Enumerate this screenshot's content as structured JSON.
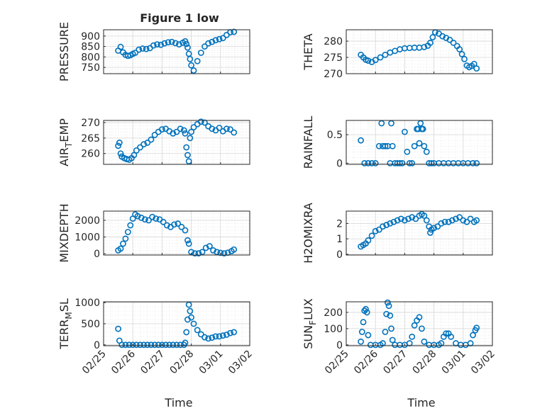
{
  "figure": {
    "title": "Figure 1 low",
    "marker_color": "#0072BD",
    "x_date_tick_labels": [
      "02/25",
      "02/26",
      "02/27",
      "02/28",
      "03/01",
      "03/02"
    ],
    "x_axis_label": "Time"
  },
  "chart_data": [
    {
      "type": "scatter",
      "marker": "open-circle",
      "grid": true,
      "title": "Figure 1 low",
      "ylabel": "PRESSURE",
      "ylim": [
        720,
        930
      ],
      "yticks": [
        750,
        800,
        850,
        900
      ],
      "x_range": [
        "02/25",
        "03/02"
      ],
      "x": [
        "02/25 12:00",
        "02/25 14:00",
        "02/25 16:00",
        "02/25 18:00",
        "02/25 20:00",
        "02/25 22:00",
        "02/26 00:00",
        "02/26 02:00",
        "02/26 05:00",
        "02/26 08:00",
        "02/26 11:00",
        "02/26 14:00",
        "02/26 17:00",
        "02/26 20:00",
        "02/26 23:00",
        "02/27 02:00",
        "02/27 05:00",
        "02/27 08:00",
        "02/27 11:00",
        "02/27 14:00",
        "02/27 17:00",
        "02/27 19:00",
        "02/27 20:00",
        "02/27 21:00",
        "02/27 22:00",
        "02/27 23:00",
        "02/28 00:00",
        "02/28 02:00",
        "02/28 05:00",
        "02/28 08:00",
        "02/28 11:00",
        "02/28 14:00",
        "02/28 17:00",
        "02/28 20:00",
        "02/28 23:00",
        "03/01 02:00",
        "03/01 05:00",
        "03/01 08:00",
        "03/01 11:00"
      ],
      "y": [
        830,
        848,
        822,
        810,
        805,
        808,
        815,
        820,
        835,
        840,
        838,
        842,
        855,
        860,
        858,
        865,
        870,
        872,
        866,
        860,
        868,
        875,
        862,
        845,
        815,
        790,
        760,
        735,
        780,
        820,
        850,
        865,
        872,
        880,
        885,
        890,
        905,
        918,
        920
      ]
    },
    {
      "type": "scatter",
      "marker": "open-circle",
      "grid": true,
      "ylabel": "THETA",
      "ylim": [
        270,
        283.5
      ],
      "yticks": [
        270,
        275,
        280
      ],
      "x_range": [
        "02/25",
        "03/02"
      ],
      "x": [
        "02/25 12:00",
        "02/25 14:00",
        "02/25 16:00",
        "02/25 18:00",
        "02/25 21:00",
        "02/26 00:00",
        "02/26 04:00",
        "02/26 08:00",
        "02/26 12:00",
        "02/26 16:00",
        "02/26 20:00",
        "02/27 00:00",
        "02/27 04:00",
        "02/27 08:00",
        "02/27 12:00",
        "02/27 16:00",
        "02/27 19:00",
        "02/27 21:00",
        "02/27 23:00",
        "02/28 01:00",
        "02/28 04:00",
        "02/28 07:00",
        "02/28 10:00",
        "02/28 13:00",
        "02/28 16:00",
        "02/28 19:00",
        "02/28 21:00",
        "02/28 23:00",
        "03/01 01:00",
        "03/01 03:00",
        "03/01 05:00",
        "03/01 07:00",
        "03/01 09:00",
        "03/01 11:00"
      ],
      "y": [
        275.8,
        275.0,
        274.3,
        274.0,
        273.6,
        274.2,
        275.0,
        275.8,
        276.5,
        277.0,
        277.5,
        277.8,
        277.9,
        278.0,
        278.0,
        278.2,
        278.6,
        279.5,
        281.2,
        282.7,
        282.3,
        281.5,
        281.0,
        280.4,
        279.5,
        278.5,
        277.5,
        276.0,
        274.5,
        272.5,
        272.0,
        272.4,
        273.0,
        271.6
      ]
    },
    {
      "type": "scatter",
      "marker": "open-circle",
      "grid": true,
      "ylabel": "AIR_TEMP",
      "ylim": [
        256.5,
        270.7
      ],
      "yticks": [
        260,
        265,
        270
      ],
      "x_range": [
        "02/25",
        "03/02"
      ],
      "x": [
        "02/25 12:00",
        "02/25 13:00",
        "02/25 14:00",
        "02/25 15:00",
        "02/25 17:00",
        "02/25 19:00",
        "02/25 21:00",
        "02/25 23:00",
        "02/26 01:00",
        "02/26 03:00",
        "02/26 06:00",
        "02/26 09:00",
        "02/26 12:00",
        "02/26 15:00",
        "02/26 18:00",
        "02/26 21:00",
        "02/27 00:00",
        "02/27 03:00",
        "02/27 06:00",
        "02/27 09:00",
        "02/27 12:00",
        "02/27 15:00",
        "02/27 18:00",
        "02/27 19:00",
        "02/27 20:00",
        "02/27 21:00",
        "02/27 22:00",
        "02/27 23:00",
        "02/28 00:00",
        "02/28 02:00",
        "02/28 05:00",
        "02/28 08:00",
        "02/28 11:00",
        "02/28 14:00",
        "02/28 17:00",
        "02/28 20:00",
        "02/28 23:00",
        "03/01 02:00",
        "03/01 05:00",
        "03/01 08:00",
        "03/01 11:00"
      ],
      "y": [
        262.5,
        263.5,
        260.0,
        259.0,
        258.5,
        258.2,
        258.0,
        258.5,
        259.5,
        261.0,
        262.0,
        263.0,
        263.5,
        264.5,
        266.0,
        267.0,
        267.8,
        268.0,
        267.2,
        266.5,
        267.0,
        268.0,
        267.5,
        266.5,
        262.0,
        259.5,
        257.5,
        265.0,
        267.0,
        268.5,
        269.5,
        270.3,
        270.0,
        268.8,
        268.0,
        267.5,
        268.3,
        267.2,
        268.0,
        267.8,
        266.8
      ]
    },
    {
      "type": "scatter",
      "marker": "open-circle",
      "grid": true,
      "ylabel": "RAINFALL",
      "ylim": [
        -0.02,
        0.75
      ],
      "yticks": [
        0,
        0.5
      ],
      "x_range": [
        "02/25",
        "03/02"
      ],
      "x": [
        "02/25 12:00",
        "02/25 15:00",
        "02/25 18:00",
        "02/25 21:00",
        "02/26 00:00",
        "02/26 03:00",
        "02/26 05:00",
        "02/26 06:00",
        "02/26 08:00",
        "02/26 10:00",
        "02/26 12:00",
        "02/26 13:00",
        "02/26 14:00",
        "02/26 16:00",
        "02/26 18:00",
        "02/26 20:00",
        "02/26 22:00",
        "02/27 00:00",
        "02/27 02:00",
        "02/27 04:00",
        "02/27 06:00",
        "02/27 08:00",
        "02/27 10:00",
        "02/27 11:00",
        "02/27 12:00",
        "02/27 13:00",
        "02/27 14:00",
        "02/27 15:00",
        "02/27 16:00",
        "02/27 18:00",
        "02/27 20:00",
        "02/27 22:00",
        "02/28 00:00",
        "02/28 04:00",
        "02/28 08:00",
        "02/28 12:00",
        "02/28 16:00",
        "02/28 20:00",
        "03/01 00:00",
        "03/01 04:00",
        "03/01 08:00",
        "03/01 11:00"
      ],
      "y": [
        0.4,
        0,
        0,
        0,
        0,
        0.3,
        0.7,
        0.3,
        0.3,
        0.3,
        0,
        0.7,
        0.3,
        0,
        0,
        0,
        0,
        0.55,
        0.2,
        0,
        0,
        0.3,
        0.6,
        0.6,
        0.35,
        0.7,
        0.6,
        0.6,
        0.3,
        0.2,
        0,
        0,
        0,
        0,
        0,
        0,
        0,
        0,
        0,
        0,
        0,
        0
      ]
    },
    {
      "type": "scatter",
      "marker": "open-circle",
      "grid": true,
      "ylabel": "MIXDEPTH",
      "ylim": [
        -80,
        2550
      ],
      "yticks": [
        0,
        1000,
        2000
      ],
      "x_range": [
        "02/25",
        "03/02"
      ],
      "x": [
        "02/25 12:00",
        "02/25 14:00",
        "02/25 16:00",
        "02/25 18:00",
        "02/25 20:00",
        "02/25 22:00",
        "02/26 00:00",
        "02/26 02:00",
        "02/26 04:00",
        "02/26 07:00",
        "02/26 10:00",
        "02/26 13:00",
        "02/26 16:00",
        "02/26 19:00",
        "02/26 22:00",
        "02/27 01:00",
        "02/27 04:00",
        "02/27 07:00",
        "02/27 10:00",
        "02/27 13:00",
        "02/27 16:00",
        "02/27 19:00",
        "02/27 21:00",
        "02/27 22:00",
        "02/28 00:00",
        "02/28 03:00",
        "02/28 06:00",
        "02/28 09:00",
        "02/28 12:00",
        "02/28 15:00",
        "02/28 18:00",
        "02/28 21:00",
        "03/01 00:00",
        "03/01 03:00",
        "03/01 06:00",
        "03/01 09:00",
        "03/01 11:00"
      ],
      "y": [
        200,
        300,
        600,
        900,
        1300,
        1700,
        2100,
        2350,
        2250,
        2150,
        2050,
        2000,
        2200,
        2100,
        2050,
        1900,
        1700,
        1600,
        1750,
        1800,
        1600,
        1400,
        800,
        600,
        100,
        20,
        20,
        100,
        350,
        450,
        200,
        100,
        50,
        20,
        60,
        150,
        250
      ]
    },
    {
      "type": "scatter",
      "marker": "open-circle",
      "grid": true,
      "ylabel": "H2OMIXRA",
      "ylim": [
        -0.05,
        2.8
      ],
      "yticks": [
        0,
        1,
        2
      ],
      "x_range": [
        "02/25",
        "03/02"
      ],
      "x": [
        "02/25 12:00",
        "02/25 14:00",
        "02/25 16:00",
        "02/25 18:00",
        "02/25 21:00",
        "02/26 00:00",
        "02/26 03:00",
        "02/26 06:00",
        "02/26 09:00",
        "02/26 12:00",
        "02/26 15:00",
        "02/26 18:00",
        "02/26 21:00",
        "02/27 00:00",
        "02/27 03:00",
        "02/27 06:00",
        "02/27 09:00",
        "02/27 12:00",
        "02/27 14:00",
        "02/27 16:00",
        "02/27 18:00",
        "02/27 20:00",
        "02/27 21:00",
        "02/27 22:00",
        "02/28 00:00",
        "02/28 03:00",
        "02/28 06:00",
        "02/28 09:00",
        "02/28 12:00",
        "02/28 15:00",
        "02/28 18:00",
        "02/28 21:00",
        "03/01 00:00",
        "03/01 03:00",
        "03/01 06:00",
        "03/01 09:00",
        "03/01 11:00"
      ],
      "y": [
        0.5,
        0.6,
        0.7,
        0.9,
        1.2,
        1.5,
        1.6,
        1.8,
        1.9,
        2.0,
        2.1,
        2.2,
        2.3,
        2.2,
        2.3,
        2.4,
        2.3,
        2.5,
        2.6,
        2.5,
        2.2,
        1.8,
        1.4,
        1.6,
        1.7,
        1.8,
        2.0,
        2.1,
        2.1,
        2.2,
        2.3,
        2.4,
        2.2,
        2.1,
        2.3,
        2.1,
        2.2
      ]
    },
    {
      "type": "scatter",
      "marker": "open-circle",
      "grid": true,
      "ylabel": "TERR_MSL",
      "ylim": [
        -20,
        1020
      ],
      "yticks": [
        0,
        500,
        1000
      ],
      "x_range": [
        "02/25",
        "03/02"
      ],
      "x": [
        "02/25 12:00",
        "02/25 13:00",
        "02/25 15:00",
        "02/25 18:00",
        "02/25 21:00",
        "02/26 00:00",
        "02/26 03:00",
        "02/26 06:00",
        "02/26 09:00",
        "02/26 12:00",
        "02/26 15:00",
        "02/26 18:00",
        "02/26 21:00",
        "02/27 00:00",
        "02/27 03:00",
        "02/27 06:00",
        "02/27 09:00",
        "02/27 12:00",
        "02/27 15:00",
        "02/27 18:00",
        "02/27 19:00",
        "02/27 20:00",
        "02/27 21:00",
        "02/27 22:00",
        "02/27 23:00",
        "02/28 00:00",
        "02/28 02:00",
        "02/28 05:00",
        "02/28 08:00",
        "02/28 11:00",
        "02/28 14:00",
        "02/28 17:00",
        "02/28 20:00",
        "02/28 23:00",
        "03/01 02:00",
        "03/01 05:00",
        "03/01 08:00",
        "03/01 11:00"
      ],
      "y": [
        380,
        100,
        0,
        0,
        0,
        0,
        0,
        0,
        0,
        0,
        0,
        0,
        0,
        0,
        0,
        0,
        0,
        0,
        0,
        0,
        50,
        300,
        600,
        950,
        800,
        650,
        500,
        350,
        250,
        180,
        150,
        170,
        200,
        200,
        220,
        240,
        280,
        300
      ]
    },
    {
      "type": "scatter",
      "marker": "open-circle",
      "grid": true,
      "ylabel": "SUN_FLUX",
      "ylim": [
        -5,
        265
      ],
      "yticks": [
        0,
        100,
        200
      ],
      "x_range": [
        "02/25",
        "03/02"
      ],
      "x": [
        "02/25 12:00",
        "02/25 13:00",
        "02/25 14:00",
        "02/25 15:00",
        "02/25 16:00",
        "02/25 17:00",
        "02/25 18:00",
        "02/25 20:00",
        "02/26 00:00",
        "02/26 04:00",
        "02/26 06:00",
        "02/26 08:00",
        "02/26 09:00",
        "02/26 10:00",
        "02/26 11:00",
        "02/26 12:00",
        "02/26 13:00",
        "02/26 14:00",
        "02/26 16:00",
        "02/26 20:00",
        "02/27 00:00",
        "02/27 04:00",
        "02/27 06:00",
        "02/27 08:00",
        "02/27 10:00",
        "02/27 12:00",
        "02/27 14:00",
        "02/27 16:00",
        "02/27 20:00",
        "02/28 00:00",
        "02/28 04:00",
        "02/28 06:00",
        "02/28 08:00",
        "02/28 10:00",
        "02/28 12:00",
        "02/28 14:00",
        "02/28 18:00",
        "02/28 22:00",
        "03/01 02:00",
        "03/01 06:00",
        "03/01 08:00",
        "03/01 10:00",
        "03/01 11:00"
      ],
      "y": [
        20,
        80,
        140,
        210,
        220,
        200,
        60,
        0,
        0,
        0,
        10,
        80,
        190,
        260,
        240,
        180,
        100,
        30,
        0,
        0,
        0,
        10,
        50,
        120,
        150,
        170,
        100,
        20,
        0,
        0,
        0,
        10,
        50,
        70,
        70,
        50,
        10,
        0,
        0,
        10,
        60,
        90,
        105
      ]
    }
  ]
}
